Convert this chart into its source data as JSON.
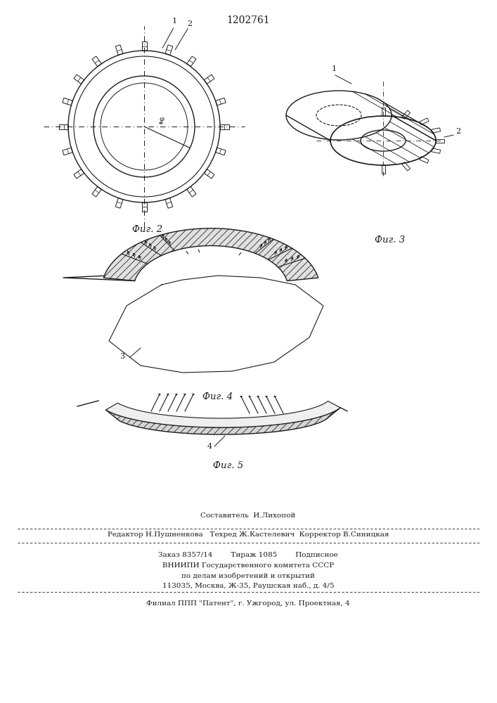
{
  "patent_number": "1202761",
  "background_color": "#ffffff",
  "line_color": "#1a1a1a",
  "fig_width": 7.07,
  "fig_height": 10.0,
  "fig2_label": "Фиг. 2",
  "fig3_label": "Фиг. 3",
  "fig4_label": "Фиг. 4",
  "fig5_label": "Фиг. 5",
  "footer_lines": [
    "Составитель  И.Лихопой",
    "Редактор Н.Пушненкова   Техред Ж.Кастелевич  Корректор В.Синицкая",
    "Заказ 8357/14        Тираж 1085        Подписное",
    "ВНИИПИ Государственного комитета СССР",
    "по делам изобретений и открытий",
    "113035, Москва, Ж-35, Раушская наб., д. 4/5",
    "Филиал ППП \"Патент\", г. Ужгород, ул. Проектная, 4"
  ]
}
